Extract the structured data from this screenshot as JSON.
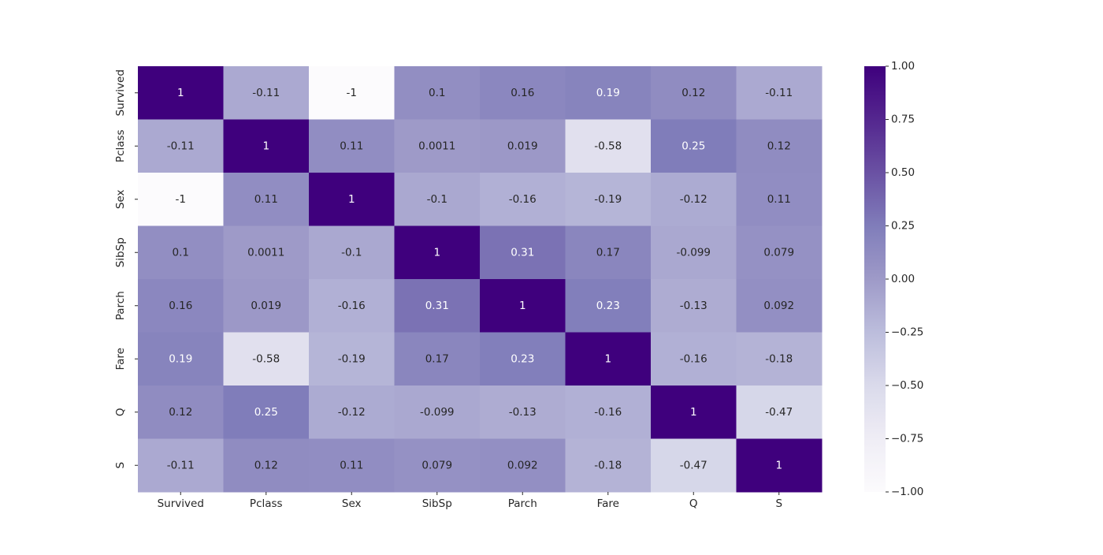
{
  "chart_data": {
    "type": "heatmap",
    "title": "",
    "xlabel": "",
    "ylabel": "",
    "x_labels": [
      "Survived",
      "Pclass",
      "Sex",
      "SibSp",
      "Parch",
      "Fare",
      "Q",
      "S"
    ],
    "y_labels": [
      "Survived",
      "Pclass",
      "Sex",
      "SibSp",
      "Parch",
      "Fare",
      "Q",
      "S"
    ],
    "values": [
      [
        1,
        -0.11,
        -1,
        0.1,
        0.16,
        0.19,
        0.12,
        -0.11
      ],
      [
        -0.11,
        1,
        0.11,
        0.0011,
        0.019,
        -0.58,
        0.25,
        0.12
      ],
      [
        -1,
        0.11,
        1,
        -0.1,
        -0.16,
        -0.19,
        -0.12,
        0.11
      ],
      [
        0.1,
        0.0011,
        -0.1,
        1,
        0.31,
        0.17,
        -0.099,
        0.079
      ],
      [
        0.16,
        0.019,
        -0.16,
        0.31,
        1,
        0.23,
        -0.13,
        0.092
      ],
      [
        0.19,
        -0.58,
        -0.19,
        0.17,
        0.23,
        1,
        -0.16,
        -0.18
      ],
      [
        0.12,
        0.25,
        -0.12,
        -0.099,
        -0.13,
        -0.16,
        1,
        -0.47
      ],
      [
        -0.11,
        0.12,
        0.11,
        0.079,
        0.092,
        -0.18,
        -0.47,
        1
      ]
    ],
    "annotations": [
      [
        "1",
        "-0.11",
        "-1",
        "0.1",
        "0.16",
        "0.19",
        "0.12",
        "-0.11"
      ],
      [
        "-0.11",
        "1",
        "0.11",
        "0.0011",
        "0.019",
        "-0.58",
        "0.25",
        "0.12"
      ],
      [
        "-1",
        "0.11",
        "1",
        "-0.1",
        "-0.16",
        "-0.19",
        "-0.12",
        "0.11"
      ],
      [
        "0.1",
        "0.0011",
        "-0.1",
        "1",
        "0.31",
        "0.17",
        "-0.099",
        "0.079"
      ],
      [
        "0.16",
        "0.019",
        "-0.16",
        "0.31",
        "1",
        "0.23",
        "-0.13",
        "0.092"
      ],
      [
        "0.19",
        "-0.58",
        "-0.19",
        "0.17",
        "0.23",
        "1",
        "-0.16",
        "-0.18"
      ],
      [
        "0.12",
        "0.25",
        "-0.12",
        "-0.099",
        "-0.13",
        "-0.16",
        "1",
        "-0.47"
      ],
      [
        "-0.11",
        "0.12",
        "0.11",
        "0.079",
        "0.092",
        "-0.18",
        "-0.47",
        "1"
      ]
    ],
    "vmin": -1,
    "vmax": 1,
    "colormap": "Purples",
    "colormap_stops": [
      "#fcfbfd",
      "#efedf5",
      "#dadaeb",
      "#bcbddc",
      "#9e9ac8",
      "#807dba",
      "#6a51a3",
      "#54278f",
      "#3f007d"
    ],
    "colorbar_ticks": [
      1.0,
      0.75,
      0.5,
      0.25,
      0.0,
      -0.25,
      -0.5,
      -0.75,
      -1.0
    ],
    "colorbar_tick_labels": [
      "1.00",
      "0.75",
      "0.50",
      "0.25",
      "0.00",
      "−0.25",
      "−0.50",
      "−0.75",
      "−1.00"
    ],
    "text_color_dark": "#262626",
    "text_color_light": "#ffffff",
    "grid": false
  }
}
